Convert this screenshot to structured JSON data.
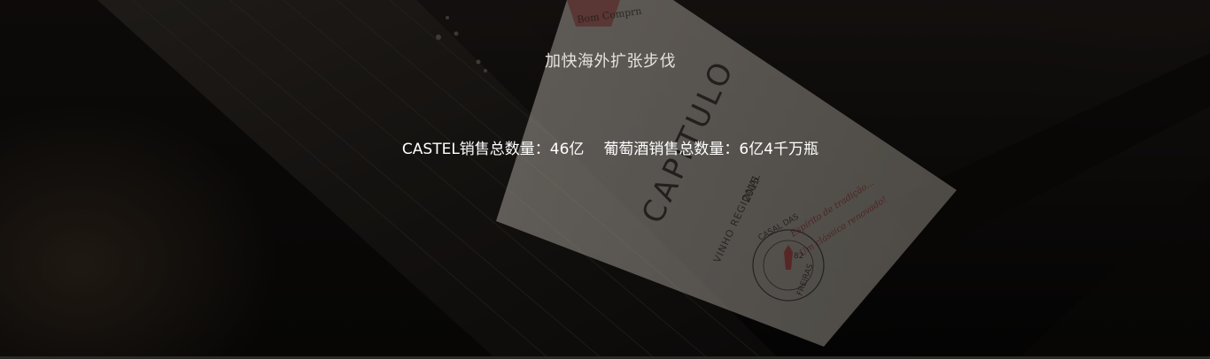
{
  "banner": {
    "title": "加快海外扩张步伐",
    "stat_sales_castel": "CASTEL销售总数量：46亿",
    "stat_sales_wine": "葡萄酒销售总数量：6亿4千万瓶"
  },
  "label_art": {
    "brand_top": "Bom Comprn",
    "brand_main": "CAPÍTULO",
    "year": "2015",
    "region": "VINHO REGIONAL",
    "script_line1": "Espírito de tradição...",
    "script_line2": "Um clássico renovado!",
    "seal_top": "CASAL DAS",
    "seal_bottom": "FREIRAS",
    "seal_year": "82"
  },
  "colors": {
    "background": "#0b0a0a",
    "text": "#ffffff",
    "label": "#d8d2c8"
  }
}
